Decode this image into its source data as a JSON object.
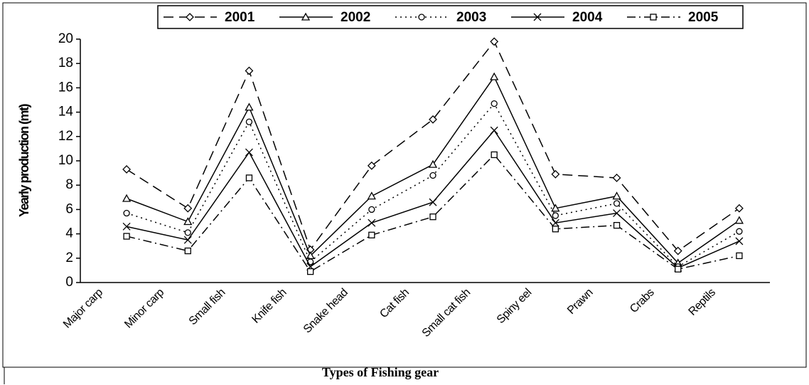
{
  "chart_data": {
    "type": "line",
    "x_label": "Types of Fishing gear",
    "y_label": "Yearly production (mt)",
    "categories": [
      "Major carp",
      "Minor carp",
      "Small fish",
      "Knife fish",
      "Snake head",
      "Cat fish",
      "Small cat fish",
      "Spiny eel",
      "Prawn",
      "Crabs",
      "Reptils"
    ],
    "series": [
      {
        "name": "2001",
        "color": "#000000",
        "dash": "14 8",
        "marker": "diamond",
        "values": [
          9.3,
          6.1,
          17.4,
          2.7,
          9.6,
          13.4,
          19.8,
          8.9,
          8.6,
          2.6,
          6.1
        ]
      },
      {
        "name": "2002",
        "color": "#000000",
        "dash": "none",
        "marker": "triangle",
        "values": [
          6.9,
          5.0,
          14.4,
          2.2,
          7.1,
          9.7,
          16.9,
          6.1,
          7.1,
          1.6,
          5.1
        ]
      },
      {
        "name": "2003",
        "color": "#000000",
        "dash": "2 5",
        "marker": "circle",
        "values": [
          5.7,
          4.1,
          13.2,
          1.7,
          6.0,
          8.8,
          14.7,
          5.5,
          6.5,
          1.3,
          4.2
        ]
      },
      {
        "name": "2004",
        "color": "#000000",
        "dash": "none",
        "marker": "x",
        "values": [
          4.6,
          3.5,
          10.7,
          1.3,
          4.9,
          6.6,
          12.5,
          4.9,
          5.7,
          1.2,
          3.4
        ]
      },
      {
        "name": "2005",
        "color": "#000000",
        "dash": "12 5 2 5",
        "marker": "square",
        "values": [
          3.8,
          2.6,
          8.6,
          0.9,
          3.9,
          5.4,
          10.5,
          4.4,
          4.7,
          1.1,
          2.2
        ]
      }
    ],
    "ylim": [
      0,
      20
    ],
    "yticks": [
      0,
      2,
      4,
      6,
      8,
      10,
      12,
      14,
      16,
      18,
      20
    ],
    "legend": "top"
  }
}
